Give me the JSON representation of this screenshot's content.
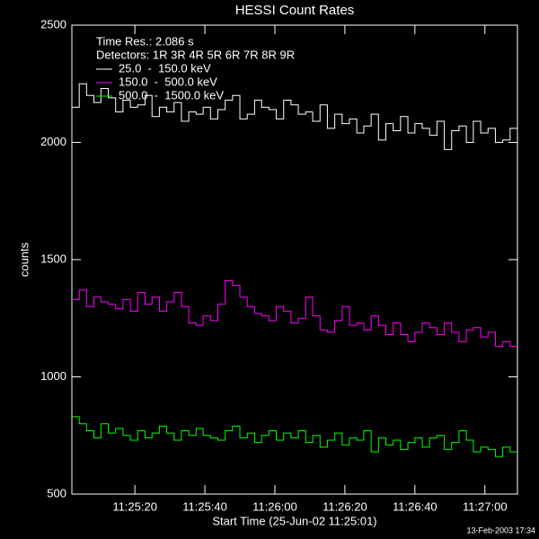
{
  "chart_data": {
    "type": "step-line",
    "title": "HESSI Count Rates",
    "x_label": "Start Time (25-Jun-02 11:25:01)",
    "y_label": "counts",
    "legend_notes": [
      "Time Res.: 2.086 s",
      "Detectors: 1R 3R 4R 5R 6R 7R 8R 9R"
    ],
    "footer": "13-Feb-2003 17:34",
    "x": [
      1.0,
      3.1,
      5.2,
      7.3,
      9.3,
      11.4,
      13.5,
      15.6,
      17.7,
      19.8,
      21.9,
      23.9,
      26.0,
      28.1,
      30.2,
      32.3,
      34.4,
      36.5,
      38.5,
      40.6,
      42.7,
      44.8,
      46.9,
      49.0,
      51.1,
      53.2,
      55.2,
      57.3,
      59.4,
      61.5,
      63.6,
      65.7,
      67.8,
      69.8,
      71.9,
      74.0,
      76.1,
      78.2,
      80.3,
      82.4,
      84.4,
      86.5,
      88.6,
      90.7,
      92.8,
      94.9,
      97.0,
      99.0,
      101.1,
      103.2,
      105.3,
      107.4,
      109.5,
      111.6,
      113.7,
      115.7,
      117.8,
      119.9,
      122.0,
      124.1,
      126.2
    ],
    "xlim": [
      1,
      128.3
    ],
    "xticks": [
      {
        "value": 19,
        "label": "11:25:20"
      },
      {
        "value": 39,
        "label": "11:25:40"
      },
      {
        "value": 59,
        "label": "11:26:00"
      },
      {
        "value": 79,
        "label": "11:26:20"
      },
      {
        "value": 99,
        "label": "11:26:40"
      },
      {
        "value": 119,
        "label": "11:27:00"
      }
    ],
    "ylim": [
      500,
      2500
    ],
    "yticks": [
      500,
      1000,
      1500,
      2000,
      2500
    ],
    "series": [
      {
        "name": "25.0  -  150.0 keV",
        "color": "#ffffff",
        "values": [
          2150,
          2250,
          2200,
          2170,
          2230,
          2190,
          2130,
          2180,
          2150,
          2160,
          2200,
          2110,
          2150,
          2130,
          2170,
          2090,
          2130,
          2120,
          2150,
          2100,
          2140,
          2180,
          2200,
          2100,
          2120,
          2180,
          2150,
          2140,
          2100,
          2180,
          2160,
          2120,
          2130,
          2090,
          2160,
          2060,
          2120,
          2080,
          2100,
          2040,
          2070,
          2120,
          2010,
          2080,
          2050,
          2110,
          2040,
          2080,
          2060,
          2030,
          2090,
          1970,
          2050,
          2070,
          2000,
          2090,
          2040,
          2060,
          2000,
          2010,
          2060
        ]
      },
      {
        "name": "150.0  -  500.0 keV",
        "color": "#ff00ff",
        "values": [
          1330,
          1370,
          1300,
          1340,
          1320,
          1310,
          1290,
          1330,
          1280,
          1360,
          1310,
          1340,
          1280,
          1320,
          1360,
          1300,
          1230,
          1220,
          1260,
          1240,
          1310,
          1410,
          1390,
          1340,
          1300,
          1270,
          1260,
          1240,
          1300,
          1280,
          1230,
          1250,
          1340,
          1260,
          1200,
          1190,
          1240,
          1300,
          1220,
          1230,
          1200,
          1260,
          1220,
          1180,
          1230,
          1180,
          1150,
          1190,
          1230,
          1210,
          1180,
          1230,
          1190,
          1150,
          1200,
          1210,
          1170,
          1190,
          1130,
          1150,
          1130
        ]
      },
      {
        "name": "500.0  -  1500.0 keV",
        "color": "#00ff00",
        "values": [
          830,
          800,
          770,
          740,
          800,
          760,
          780,
          750,
          730,
          770,
          740,
          760,
          790,
          760,
          730,
          770,
          750,
          780,
          750,
          740,
          730,
          770,
          790,
          740,
          760,
          720,
          750,
          770,
          730,
          760,
          740,
          770,
          720,
          750,
          700,
          730,
          760,
          710,
          740,
          730,
          770,
          680,
          740,
          710,
          730,
          690,
          720,
          740,
          700,
          740,
          750,
          690,
          720,
          770,
          730,
          680,
          700,
          690,
          660,
          700,
          680
        ]
      }
    ]
  }
}
